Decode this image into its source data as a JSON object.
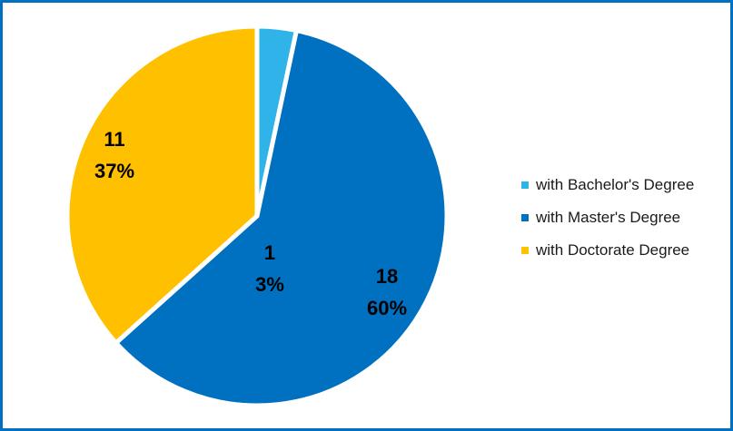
{
  "chart_data": {
    "type": "pie",
    "title": "",
    "slices": [
      {
        "name": "with Bachelor's Degree",
        "value": 1,
        "percent": "3%",
        "value_label": "1",
        "color": "#2FB3E8"
      },
      {
        "name": "with Master's Degree",
        "value": 18,
        "percent": "60%",
        "value_label": "18",
        "color": "#0070C0"
      },
      {
        "name": "with Doctorate Degree",
        "value": 11,
        "percent": "37%",
        "value_label": "11",
        "color": "#FFC000"
      }
    ],
    "start_angle_deg": 0,
    "direction": "clockwise",
    "legend_position": "right"
  },
  "colors": {
    "frame": "#0070C0",
    "background": "#FFFFFF"
  }
}
